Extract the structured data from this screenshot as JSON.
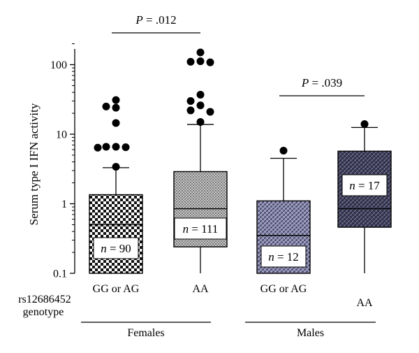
{
  "chart_data": {
    "type": "box",
    "ylabel": "Serum type I IFN activity",
    "yscale": "log",
    "ylim": [
      0.1,
      250
    ],
    "yticks": [
      {
        "value": 0.1,
        "label": "0.1"
      },
      {
        "value": 1,
        "label": "1"
      },
      {
        "value": 10,
        "label": "10"
      },
      {
        "value": 100,
        "label": "100"
      }
    ],
    "genotype_label": "rs12686452\ngenotype",
    "genotype_label_lines": [
      "rs12686452",
      "genotype"
    ],
    "groups": [
      {
        "label": "Females",
        "boxes": [
          0,
          1
        ]
      },
      {
        "label": "Males",
        "boxes": [
          2,
          3
        ]
      }
    ],
    "boxes": [
      {
        "category": "GG or AG",
        "n_label": "n = 90",
        "n_var": "n",
        "n_value": "= 90",
        "whisker_low": 0.1,
        "q1": 0.1,
        "median": 0.5,
        "q3": 1.35,
        "whisker_high": 3.3,
        "outliers": [
          31,
          25,
          24,
          14.5,
          6.6,
          6.6,
          6.5,
          6.4,
          3.4
        ],
        "fill": "checker"
      },
      {
        "category": "AA",
        "n_label": "n = 111",
        "n_var": "n",
        "n_value": "= 111",
        "whisker_low": 0.1,
        "q1": 0.24,
        "median": 0.85,
        "q3": 2.9,
        "whisker_high": 13.8,
        "outliers": [
          150,
          112,
          110,
          108,
          37,
          30,
          26,
          22,
          21,
          15
        ],
        "fill": "dense"
      },
      {
        "category": "GG or AG",
        "n_label": "n = 12",
        "n_var": "n",
        "n_value": "= 12",
        "whisker_low": 0.1,
        "q1": 0.1,
        "median": 0.35,
        "q3": 1.1,
        "whisker_high": 4.5,
        "outliers": [
          5.8
        ],
        "fill": "blue-hatch"
      },
      {
        "category": "AA",
        "n_label": "n = 17",
        "n_var": "n",
        "n_value": "= 17",
        "whisker_low": 0.1,
        "q1": 0.46,
        "median": 0.85,
        "q3": 5.7,
        "whisker_high": 12.5,
        "outliers": [
          14
        ],
        "fill": "dark-hatch"
      }
    ],
    "comparisons": [
      {
        "boxes": [
          0,
          1
        ],
        "label": "P = .012",
        "p_var": "P",
        "p_value": "= .012"
      },
      {
        "boxes": [
          2,
          3
        ],
        "label": "P = .039",
        "p_var": "P",
        "p_value": "= .039"
      }
    ]
  }
}
